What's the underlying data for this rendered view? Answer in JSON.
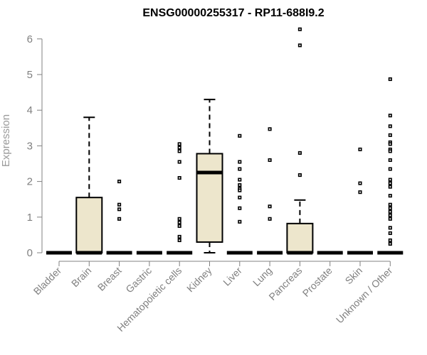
{
  "chart_data": {
    "type": "boxplot",
    "title": "ENSG00000255317 - RP11-688I9.2",
    "ylabel": "Expression",
    "xlabel": "",
    "ylim": [
      0,
      6.3
    ],
    "yticks": [
      0,
      1,
      2,
      3,
      4,
      5,
      6
    ],
    "grid": false,
    "colors": {
      "box_fill": "#ede6cc",
      "stroke": "#000000",
      "axis": "#808080"
    },
    "categories": [
      {
        "name": "Bladder",
        "q1": 0,
        "median": 0,
        "q3": 0,
        "whisker_low": 0,
        "whisker_high": 0,
        "outliers": []
      },
      {
        "name": "Brain",
        "q1": 0,
        "median": 0,
        "q3": 1.55,
        "whisker_low": 0,
        "whisker_high": 3.8,
        "outliers": []
      },
      {
        "name": "Breast",
        "q1": 0,
        "median": 0,
        "q3": 0,
        "whisker_low": 0,
        "whisker_high": 0,
        "outliers": [
          2.0,
          1.35,
          1.22,
          0.95
        ]
      },
      {
        "name": "Gastric",
        "q1": 0,
        "median": 0,
        "q3": 0,
        "whisker_low": 0,
        "whisker_high": 0,
        "outliers": []
      },
      {
        "name": "Hematopoietic cells",
        "q1": 0,
        "median": 0,
        "q3": 0,
        "whisker_low": 0,
        "whisker_high": 0,
        "outliers": [
          3.05,
          2.95,
          2.85,
          2.55,
          2.1,
          0.95,
          0.85,
          0.75,
          0.45,
          0.35
        ]
      },
      {
        "name": "Kidney",
        "q1": 0.3,
        "median": 2.25,
        "q3": 2.78,
        "whisker_low": 0,
        "whisker_high": 4.3,
        "outliers": []
      },
      {
        "name": "Liver",
        "q1": 0,
        "median": 0,
        "q3": 0,
        "whisker_low": 0,
        "whisker_high": 0,
        "outliers": [
          3.28,
          2.55,
          2.35,
          2.05,
          1.9,
          1.8,
          1.75,
          1.55,
          1.25,
          0.87
        ]
      },
      {
        "name": "Lung",
        "q1": 0,
        "median": 0,
        "q3": 0,
        "whisker_low": 0,
        "whisker_high": 0,
        "outliers": [
          3.47,
          2.6,
          1.3,
          0.95
        ]
      },
      {
        "name": "Pancreas",
        "q1": 0,
        "median": 0,
        "q3": 0.82,
        "whisker_low": 0,
        "whisker_high": 1.48,
        "outliers": [
          6.27,
          5.82,
          2.8,
          2.18
        ]
      },
      {
        "name": "Prostate",
        "q1": 0,
        "median": 0,
        "q3": 0,
        "whisker_low": 0,
        "whisker_high": 0,
        "outliers": []
      },
      {
        "name": "Skin",
        "q1": 0,
        "median": 0,
        "q3": 0,
        "whisker_low": 0,
        "whisker_high": 0,
        "outliers": [
          2.9,
          1.95,
          1.7
        ]
      },
      {
        "name": "Unknown / Other",
        "q1": 0,
        "median": 0,
        "q3": 0,
        "whisker_low": 0,
        "whisker_high": 0,
        "outliers": [
          4.87,
          3.85,
          3.55,
          3.3,
          3.1,
          3.05,
          2.9,
          2.85,
          2.6,
          2.35,
          2.05,
          1.95,
          1.85,
          1.6,
          1.35,
          1.25,
          1.15,
          1.05,
          0.95,
          0.7,
          0.55,
          0.35,
          0.25
        ]
      }
    ]
  }
}
